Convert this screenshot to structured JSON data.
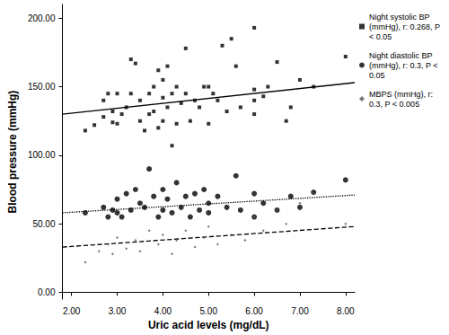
{
  "chart_data": {
    "type": "scatter",
    "x_label": "Uric acid levels (mg/dL)",
    "y_label": "Blood pressure (mmHg)",
    "xlim": [
      1.8,
      8.2
    ],
    "ylim": [
      -5,
      210
    ],
    "xticks": [
      {
        "value": 2,
        "label": "2.00"
      },
      {
        "value": 3,
        "label": "3.00"
      },
      {
        "value": 4,
        "label": "4.00"
      },
      {
        "value": 5,
        "label": "5.00"
      },
      {
        "value": 6,
        "label": "6.00"
      },
      {
        "value": 7,
        "label": "7.00"
      },
      {
        "value": 8,
        "label": "8.00"
      }
    ],
    "yticks": [
      {
        "value": 0,
        "label": "0.00"
      },
      {
        "value": 50,
        "label": "50.00"
      },
      {
        "value": 100,
        "label": "100.00"
      },
      {
        "value": 150,
        "label": "150.00"
      },
      {
        "value": 200,
        "label": "200.00"
      }
    ],
    "grid": false,
    "legend": "top-right",
    "series": [
      {
        "name": "Night systolic BP (mmHg), r: 0.268, P < 0.05",
        "color": "#000000",
        "marker": "square",
        "line_style": "solid",
        "trend": [
          [
            1.8,
            130
          ],
          [
            8.2,
            153
          ]
        ],
        "values": [
          [
            2.3,
            118
          ],
          [
            2.5,
            122
          ],
          [
            2.7,
            128
          ],
          [
            2.7,
            140
          ],
          [
            2.8,
            145
          ],
          [
            2.9,
            124
          ],
          [
            2.9,
            132
          ],
          [
            3.0,
            145
          ],
          [
            3.0,
            123
          ],
          [
            3.1,
            130
          ],
          [
            3.2,
            135
          ],
          [
            3.3,
            170
          ],
          [
            3.3,
            145
          ],
          [
            3.4,
            167
          ],
          [
            3.5,
            140
          ],
          [
            3.5,
            125
          ],
          [
            3.6,
            118
          ],
          [
            3.7,
            130
          ],
          [
            3.7,
            145
          ],
          [
            3.8,
            150
          ],
          [
            3.8,
            132
          ],
          [
            3.9,
            162
          ],
          [
            3.9,
            120
          ],
          [
            4.0,
            155
          ],
          [
            4.0,
            142
          ],
          [
            4.0,
            125
          ],
          [
            4.1,
            165
          ],
          [
            4.1,
            135
          ],
          [
            4.2,
            107
          ],
          [
            4.2,
            145
          ],
          [
            4.3,
            150
          ],
          [
            4.3,
            123
          ],
          [
            4.4,
            138
          ],
          [
            4.5,
            178
          ],
          [
            4.5,
            145
          ],
          [
            4.6,
            125
          ],
          [
            4.7,
            140
          ],
          [
            4.8,
            135
          ],
          [
            4.9,
            150
          ],
          [
            5.0,
            150
          ],
          [
            5.0,
            123
          ],
          [
            5.1,
            145
          ],
          [
            5.2,
            140
          ],
          [
            5.3,
            180
          ],
          [
            5.4,
            132
          ],
          [
            5.5,
            185
          ],
          [
            5.6,
            165
          ],
          [
            5.7,
            135
          ],
          [
            6.0,
            193
          ],
          [
            6.0,
            140
          ],
          [
            6.0,
            130
          ],
          [
            6.0,
            148
          ],
          [
            6.2,
            143
          ],
          [
            6.3,
            150
          ],
          [
            6.5,
            168
          ],
          [
            6.7,
            125
          ],
          [
            6.8,
            135
          ],
          [
            7.0,
            155
          ],
          [
            7.3,
            150
          ],
          [
            8.0,
            172
          ]
        ]
      },
      {
        "name": "Night diastolic BP (mmHg), r: 0.3, P < 0.05",
        "color": "#000000",
        "marker": "circle",
        "line_style": "dotted",
        "trend": [
          [
            1.8,
            58
          ],
          [
            8.2,
            71
          ]
        ],
        "values": [
          [
            2.3,
            58
          ],
          [
            2.7,
            62
          ],
          [
            2.8,
            55
          ],
          [
            2.9,
            60
          ],
          [
            3.0,
            58
          ],
          [
            3.0,
            68
          ],
          [
            3.1,
            55
          ],
          [
            3.2,
            72
          ],
          [
            3.3,
            60
          ],
          [
            3.4,
            75
          ],
          [
            3.5,
            65
          ],
          [
            3.6,
            62
          ],
          [
            3.7,
            90
          ],
          [
            3.8,
            70
          ],
          [
            3.9,
            55
          ],
          [
            4.0,
            60
          ],
          [
            4.0,
            75
          ],
          [
            4.1,
            68
          ],
          [
            4.2,
            58
          ],
          [
            4.3,
            80
          ],
          [
            4.4,
            62
          ],
          [
            4.5,
            70
          ],
          [
            4.6,
            55
          ],
          [
            4.7,
            72
          ],
          [
            4.8,
            60
          ],
          [
            4.9,
            75
          ],
          [
            5.0,
            65
          ],
          [
            5.0,
            58
          ],
          [
            5.2,
            70
          ],
          [
            5.4,
            62
          ],
          [
            5.6,
            85
          ],
          [
            5.7,
            60
          ],
          [
            6.0,
            72
          ],
          [
            6.0,
            55
          ],
          [
            6.2,
            65
          ],
          [
            6.5,
            60
          ],
          [
            6.8,
            70
          ],
          [
            7.0,
            62
          ],
          [
            7.3,
            73
          ],
          [
            8.0,
            82
          ]
        ]
      },
      {
        "name": "MBPS (mmHg), r: 0.3, P < 0.005",
        "color": "#555555",
        "marker": "diamond",
        "line_style": "dashed",
        "trend": [
          [
            1.8,
            33
          ],
          [
            8.2,
            48
          ]
        ],
        "values": [
          [
            2.3,
            22
          ],
          [
            2.6,
            30
          ],
          [
            2.8,
            35
          ],
          [
            2.9,
            28
          ],
          [
            3.0,
            40
          ],
          [
            3.2,
            32
          ],
          [
            3.4,
            38
          ],
          [
            3.5,
            30
          ],
          [
            3.7,
            45
          ],
          [
            3.9,
            35
          ],
          [
            4.0,
            42
          ],
          [
            4.2,
            28
          ],
          [
            4.3,
            38
          ],
          [
            4.5,
            45
          ],
          [
            4.7,
            33
          ],
          [
            4.9,
            40
          ],
          [
            5.0,
            48
          ],
          [
            5.2,
            35
          ],
          [
            5.5,
            42
          ],
          [
            5.8,
            38
          ],
          [
            6.0,
            55
          ],
          [
            6.2,
            45
          ],
          [
            6.5,
            60
          ],
          [
            6.7,
            50
          ],
          [
            7.0,
            65
          ],
          [
            7.3,
            72
          ],
          [
            8.0,
            50
          ]
        ]
      }
    ]
  }
}
